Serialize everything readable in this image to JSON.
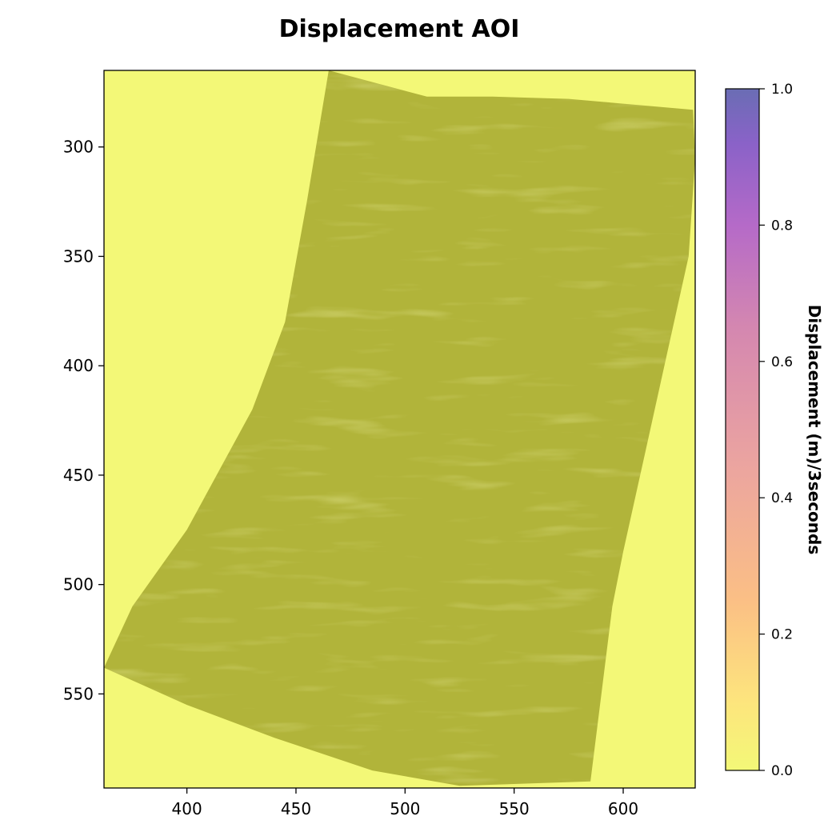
{
  "chart_data": {
    "type": "heatmap",
    "title": "Displacement AOI",
    "xlabel": "",
    "ylabel": "",
    "xlim": [
      362,
      633
    ],
    "ylim": [
      593,
      265
    ],
    "y_inverted": true,
    "x_ticks": [
      400,
      450,
      500,
      550,
      600
    ],
    "y_ticks": [
      300,
      350,
      400,
      450,
      500,
      550
    ],
    "grid": false,
    "background_color": "#f3f877",
    "data_region": {
      "fill_color": "#b1b43a",
      "polygon": [
        [
          465,
          265
        ],
        [
          510,
          277
        ],
        [
          540,
          277
        ],
        [
          575,
          278
        ],
        [
          632,
          283
        ],
        [
          633,
          305
        ],
        [
          630,
          350
        ],
        [
          620,
          395
        ],
        [
          610,
          440
        ],
        [
          600,
          485
        ],
        [
          595,
          510
        ],
        [
          585,
          590
        ],
        [
          525,
          592
        ],
        [
          485,
          585
        ],
        [
          440,
          570
        ],
        [
          400,
          555
        ],
        [
          362,
          538
        ],
        [
          375,
          510
        ],
        [
          400,
          475
        ],
        [
          430,
          420
        ],
        [
          445,
          380
        ],
        [
          455,
          325
        ]
      ],
      "texture": "streaked terrain"
    },
    "colorbar": {
      "label": "Displacement (m)/3seconds",
      "min": 0.0,
      "max": 1.0,
      "ticks": [
        0.0,
        0.2,
        0.4,
        0.6,
        0.8,
        1.0
      ],
      "tick_labels": [
        "0.0",
        "0.2",
        "0.4",
        "0.6",
        "0.8",
        "1.0"
      ],
      "colormap": "plasma_r (semi-transparent)",
      "gradient_stops": [
        {
          "value": 0.0,
          "color": "#f3f877"
        },
        {
          "value": 0.1,
          "color": "#fde57d"
        },
        {
          "value": 0.25,
          "color": "#fbbf85"
        },
        {
          "value": 0.45,
          "color": "#eba4a0"
        },
        {
          "value": 0.65,
          "color": "#d487b0"
        },
        {
          "value": 0.8,
          "color": "#b56ac8"
        },
        {
          "value": 0.92,
          "color": "#8a62c8"
        },
        {
          "value": 1.0,
          "color": "#6a6db4"
        }
      ]
    }
  }
}
